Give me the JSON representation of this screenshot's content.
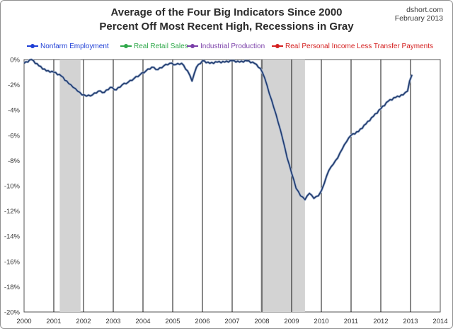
{
  "title_line1": "Average of the Four Big Indicators Since 2000",
  "title_line2": "Percent Off Most Recent High, Recessions in Gray",
  "source": "dshort.com",
  "source_date": "February 2013",
  "legend": [
    {
      "label": "Nonfarm Employment",
      "color": "#1f3fd6"
    },
    {
      "label": "Real Retail Sales",
      "color": "#2fa84a"
    },
    {
      "label": "Industrial Production",
      "color": "#7a3fa8"
    },
    {
      "label": "Real Personal Income Less Transfer Payments",
      "color": "#d42020"
    }
  ],
  "chart_data": {
    "type": "line",
    "title": "Average of the Four Big Indicators Since 2000",
    "subtitle": "Percent Off Most Recent High, Recessions in Gray",
    "xlim": [
      2000,
      2014
    ],
    "ylim": [
      -20,
      0
    ],
    "x_ticks": [
      "2000",
      "2001",
      "2002",
      "2003",
      "2004",
      "2005",
      "2006",
      "2007",
      "2008",
      "2009",
      "2010",
      "2011",
      "2012",
      "2013",
      "2014"
    ],
    "y_ticks": [
      "0%",
      "-2%",
      "-4%",
      "-6%",
      "-8%",
      "-10%",
      "-12%",
      "-14%",
      "-16%",
      "-18%",
      "-20%"
    ],
    "recessions": [
      [
        2001.2,
        2001.9
      ],
      [
        2007.95,
        2009.45
      ]
    ],
    "grid": "vertical lines at years",
    "line_color": "#1f3a6e",
    "series": [
      {
        "x": [
          2000.0,
          2000.25,
          2000.5,
          2000.75,
          2001.0,
          2001.25,
          2001.5,
          2001.65,
          2001.8,
          2001.95,
          2002.1,
          2002.3,
          2002.5,
          2002.7,
          2002.9,
          2003.1,
          2003.3,
          2003.5,
          2003.7,
          2003.9,
          2004.1,
          2004.3,
          2004.5,
          2004.7,
          2004.9,
          2005.1,
          2005.3,
          2005.5,
          2005.65,
          2005.8,
          2006.0,
          2006.25,
          2006.5,
          2006.75,
          2007.0,
          2007.25,
          2007.5,
          2007.75,
          2007.95,
          2008.1,
          2008.25,
          2008.4,
          2008.55,
          2008.7,
          2008.85,
          2009.0,
          2009.15,
          2009.3,
          2009.45,
          2009.6,
          2009.75,
          2009.9,
          2010.0,
          2010.1,
          2010.25,
          2010.4,
          2010.55,
          2010.7,
          2010.85,
          2011.0,
          2011.25,
          2011.5,
          2011.75,
          2012.0,
          2012.25,
          2012.5,
          2012.75,
          2012.9,
          2012.97,
          2013.05
        ],
        "values": [
          -0.3,
          0.0,
          -0.5,
          -0.9,
          -1.0,
          -1.3,
          -1.9,
          -2.2,
          -2.5,
          -2.8,
          -2.9,
          -2.8,
          -2.5,
          -2.6,
          -2.2,
          -2.4,
          -2.0,
          -1.8,
          -1.5,
          -1.2,
          -0.9,
          -0.6,
          -0.8,
          -0.5,
          -0.3,
          -0.4,
          -0.3,
          -0.9,
          -1.7,
          -0.6,
          -0.1,
          -0.3,
          -0.2,
          -0.2,
          -0.1,
          -0.2,
          -0.1,
          -0.3,
          -0.7,
          -1.5,
          -2.7,
          -3.8,
          -5.0,
          -6.3,
          -7.8,
          -9.0,
          -10.2,
          -10.8,
          -11.1,
          -10.6,
          -11.0,
          -10.8,
          -10.4,
          -9.8,
          -8.8,
          -8.3,
          -7.8,
          -7.1,
          -6.5,
          -6.0,
          -5.7,
          -5.1,
          -4.5,
          -3.9,
          -3.3,
          -3.0,
          -2.8,
          -2.5,
          -1.7,
          -1.2
        ]
      }
    ]
  }
}
